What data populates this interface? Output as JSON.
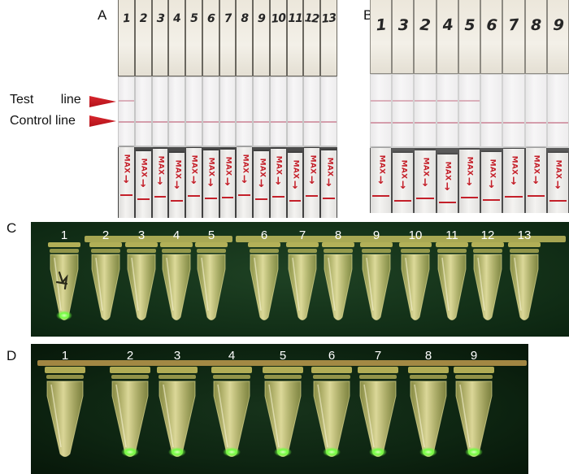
{
  "panels": {
    "a": {
      "label": "A",
      "strip_text": "MAX",
      "strips": [
        {
          "number": "1",
          "test_line": true
        },
        {
          "number": "2",
          "test_line": false
        },
        {
          "number": "3",
          "test_line": false
        },
        {
          "number": "4",
          "test_line": false
        },
        {
          "number": "5",
          "test_line": false
        },
        {
          "number": "6",
          "test_line": false
        },
        {
          "number": "7",
          "test_line": false
        },
        {
          "number": "8",
          "test_line": false
        },
        {
          "number": "9",
          "test_line": false
        },
        {
          "number": "10",
          "test_line": false
        },
        {
          "number": "11",
          "test_line": false
        },
        {
          "number": "12",
          "test_line": false
        },
        {
          "number": "13",
          "test_line": false
        }
      ]
    },
    "b": {
      "label": "B",
      "strip_text": "MAX",
      "strips": [
        {
          "number": "1",
          "test_line": true
        },
        {
          "number": "3",
          "test_line": true
        },
        {
          "number": "2",
          "test_line": true
        },
        {
          "number": "4",
          "test_line": true
        },
        {
          "number": "5",
          "test_line": true
        },
        {
          "number": "6",
          "test_line": false
        },
        {
          "number": "7",
          "test_line": false
        },
        {
          "number": "8",
          "test_line": false
        },
        {
          "number": "9",
          "test_line": false
        }
      ]
    },
    "c": {
      "label": "C",
      "tubes": [
        {
          "number": "1",
          "glow": true
        },
        {
          "number": "2",
          "glow": false
        },
        {
          "number": "3",
          "glow": false
        },
        {
          "number": "4",
          "glow": false
        },
        {
          "number": "5",
          "glow": false
        },
        {
          "number": "6",
          "glow": false
        },
        {
          "number": "7",
          "glow": false
        },
        {
          "number": "8",
          "glow": false
        },
        {
          "number": "9",
          "glow": false
        },
        {
          "number": "10",
          "glow": false
        },
        {
          "number": "11",
          "glow": false
        },
        {
          "number": "12",
          "glow": false
        },
        {
          "number": "13",
          "glow": false
        }
      ]
    },
    "d": {
      "label": "D",
      "tubes": [
        {
          "number": "1",
          "glow": false
        },
        {
          "number": "2",
          "glow": true
        },
        {
          "number": "3",
          "glow": true
        },
        {
          "number": "4",
          "glow": true
        },
        {
          "number": "5",
          "glow": true
        },
        {
          "number": "6",
          "glow": true
        },
        {
          "number": "7",
          "glow": true
        },
        {
          "number": "8",
          "glow": true
        },
        {
          "number": "9",
          "glow": true
        }
      ]
    }
  },
  "line_labels": {
    "test": "Test line",
    "control": "Control line"
  },
  "colors": {
    "marker_arrow": "#b3121a",
    "strip_print": "#c4202a",
    "test_line": "#d6a3b0",
    "control_line": "#cf8e9f",
    "tube_plastic": "#e7da6c",
    "cap_strip_d": "#e2b45a",
    "fluorescence": "#6cff3c",
    "tube_number": "#ffffff"
  }
}
